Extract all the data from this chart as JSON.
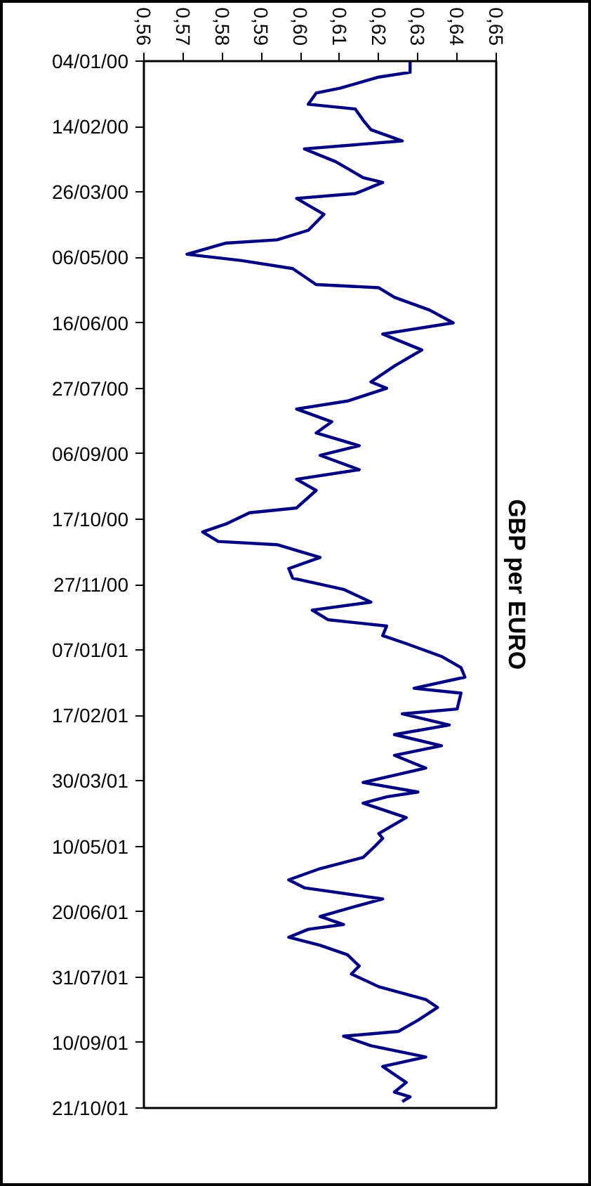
{
  "chart_data": {
    "type": "line",
    "title": "GBP per EURO",
    "x": [
      "2000-01-04",
      "2000-01-11",
      "2000-01-14",
      "2000-01-21",
      "2000-01-24",
      "2000-01-31",
      "2000-02-03",
      "2000-02-10",
      "2000-02-16",
      "2000-02-23",
      "2000-02-28",
      "2000-03-07",
      "2000-03-17",
      "2000-03-20",
      "2000-03-27",
      "2000-03-30",
      "2000-04-09",
      "2000-04-19",
      "2000-04-25",
      "2000-04-27",
      "2000-05-04",
      "2000-05-08",
      "2000-05-13",
      "2000-05-23",
      "2000-05-25",
      "2000-05-31",
      "2000-06-08",
      "2000-06-16",
      "2000-06-23",
      "2000-07-03",
      "2000-07-13",
      "2000-07-23",
      "2000-07-27",
      "2000-08-04",
      "2000-08-09",
      "2000-08-17",
      "2000-08-24",
      "2000-09-01",
      "2000-09-07",
      "2000-09-16",
      "2000-09-22",
      "2000-09-29",
      "2000-10-10",
      "2000-10-13",
      "2000-10-20",
      "2000-10-25",
      "2000-10-31",
      "2000-11-02",
      "2000-11-10",
      "2000-11-17",
      "2000-11-23",
      "2000-11-30",
      "2000-12-08",
      "2000-12-13",
      "2000-12-19",
      "2000-12-23",
      "2000-12-29",
      "2001-01-03",
      "2001-01-11",
      "2001-01-18",
      "2001-01-24",
      "2001-01-31",
      "2001-02-03",
      "2001-02-13",
      "2001-02-16",
      "2001-02-23",
      "2001-03-01",
      "2001-03-08",
      "2001-03-14",
      "2001-03-22",
      "2001-03-31",
      "2001-04-06",
      "2001-04-09",
      "2001-04-13",
      "2001-04-22",
      "2001-05-02",
      "2001-05-05",
      "2001-05-10",
      "2001-05-17",
      "2001-05-24",
      "2001-05-31",
      "2001-06-05",
      "2001-06-12",
      "2001-06-16",
      "2001-06-23",
      "2001-06-28",
      "2001-07-01",
      "2001-07-06",
      "2001-07-11",
      "2001-07-17",
      "2001-07-24",
      "2001-07-29",
      "2001-08-06",
      "2001-08-14",
      "2001-08-19",
      "2001-08-27",
      "2001-09-03",
      "2001-09-06",
      "2001-09-12",
      "2001-09-19",
      "2001-09-25",
      "2001-10-05",
      "2001-10-11",
      "2001-10-14",
      "2001-10-17"
    ],
    "series": [
      {
        "color": "#000080",
        "values": [
          0.628,
          0.628,
          0.62,
          0.61,
          0.604,
          0.602,
          0.614,
          0.616,
          0.618,
          0.626,
          0.601,
          0.609,
          0.616,
          0.621,
          0.614,
          0.599,
          0.606,
          0.602,
          0.594,
          0.581,
          0.571,
          0.585,
          0.598,
          0.604,
          0.62,
          0.624,
          0.633,
          0.639,
          0.621,
          0.631,
          0.624,
          0.618,
          0.622,
          0.612,
          0.599,
          0.608,
          0.604,
          0.615,
          0.605,
          0.615,
          0.599,
          0.604,
          0.599,
          0.587,
          0.581,
          0.575,
          0.579,
          0.594,
          0.605,
          0.597,
          0.598,
          0.611,
          0.618,
          0.603,
          0.607,
          0.622,
          0.621,
          0.627,
          0.636,
          0.641,
          0.642,
          0.629,
          0.641,
          0.64,
          0.626,
          0.638,
          0.624,
          0.636,
          0.624,
          0.632,
          0.616,
          0.63,
          0.622,
          0.616,
          0.627,
          0.62,
          0.621,
          0.619,
          0.616,
          0.605,
          0.597,
          0.601,
          0.621,
          0.615,
          0.605,
          0.611,
          0.602,
          0.597,
          0.605,
          0.612,
          0.615,
          0.613,
          0.62,
          0.632,
          0.635,
          0.63,
          0.625,
          0.611,
          0.618,
          0.632,
          0.621,
          0.627,
          0.624,
          0.628,
          0.626
        ]
      }
    ],
    "orientation": "horizontal",
    "xlim": [
      0.56,
      0.65
    ],
    "xticks": [
      {
        "value": 0.56,
        "label": "0,56"
      },
      {
        "value": 0.57,
        "label": "0,57"
      },
      {
        "value": 0.58,
        "label": "0,58"
      },
      {
        "value": 0.59,
        "label": "0,59"
      },
      {
        "value": 0.6,
        "label": "0,60"
      },
      {
        "value": 0.61,
        "label": "0,61"
      },
      {
        "value": 0.62,
        "label": "0,62"
      },
      {
        "value": 0.63,
        "label": "0,63"
      },
      {
        "value": 0.64,
        "label": "0,64"
      },
      {
        "value": 0.65,
        "label": "0,65"
      }
    ],
    "ylim": [
      "2001-10-21",
      "2000-01-04"
    ],
    "yticks": [
      {
        "value": "2000-01-04",
        "label": "04/01/00"
      },
      {
        "value": "2000-02-14",
        "label": "14/02/00"
      },
      {
        "value": "2000-03-26",
        "label": "26/03/00"
      },
      {
        "value": "2000-05-06",
        "label": "06/05/00"
      },
      {
        "value": "2000-06-16",
        "label": "16/06/00"
      },
      {
        "value": "2000-07-27",
        "label": "27/07/00"
      },
      {
        "value": "2000-09-06",
        "label": "06/09/00"
      },
      {
        "value": "2000-10-17",
        "label": "17/10/00"
      },
      {
        "value": "2000-11-27",
        "label": "27/11/00"
      },
      {
        "value": "2001-01-07",
        "label": "07/01/01"
      },
      {
        "value": "2001-02-17",
        "label": "17/02/01"
      },
      {
        "value": "2001-03-30",
        "label": "30/03/01"
      },
      {
        "value": "2001-05-10",
        "label": "10/05/01"
      },
      {
        "value": "2001-06-20",
        "label": "20/06/01"
      },
      {
        "value": "2001-07-31",
        "label": "31/07/01"
      },
      {
        "value": "2001-09-10",
        "label": "10/09/01"
      },
      {
        "value": "2001-10-21",
        "label": "21/10/01"
      }
    ],
    "grid": false
  }
}
